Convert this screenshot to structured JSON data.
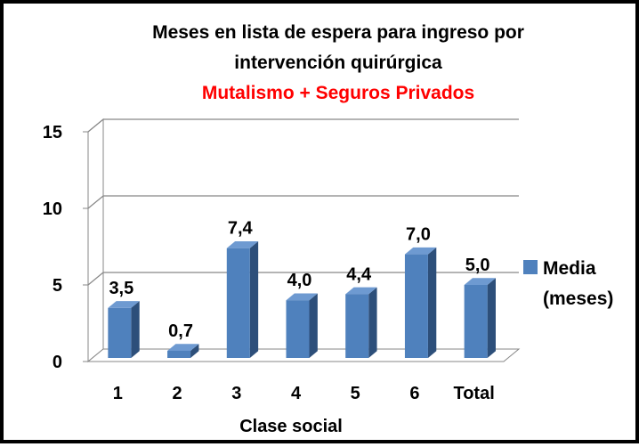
{
  "chart_data": {
    "type": "bar",
    "title_lines": [
      "Meses en lista de espera para ingreso por",
      "intervención quirúrgica"
    ],
    "subtitle": "Mutalismo + Seguros Privados",
    "xlabel": "Clase social",
    "ylabel": "",
    "categories": [
      "1",
      "2",
      "3",
      "4",
      "5",
      "6",
      "Total"
    ],
    "series": [
      {
        "name_lines": [
          "Media",
          "(meses)"
        ],
        "values": [
          3.5,
          0.7,
          7.4,
          4.0,
          4.4,
          7.0,
          5.0
        ],
        "value_labels": [
          "3,5",
          "0,7",
          "7,4",
          "4,0",
          "4,4",
          "7,0",
          "5,0"
        ]
      }
    ],
    "ylim": [
      0,
      15
    ],
    "yticks": [
      "0",
      "5",
      "10",
      "15"
    ],
    "grid": true,
    "legend_position": "right",
    "style": "3d",
    "colors": {
      "bar_front": "#4F81BD",
      "bar_side": "#2D4F7A",
      "bar_top": "#6E9AD1",
      "subtitle": "#FF0000",
      "gridline": "#878787"
    }
  }
}
